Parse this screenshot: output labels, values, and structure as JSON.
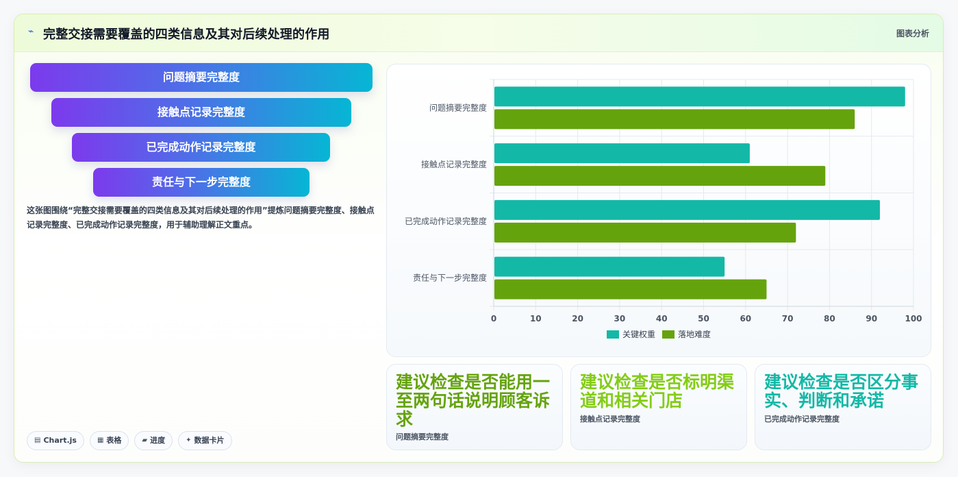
{
  "header": {
    "icon": "spark-icon",
    "title": "完整交接需要覆盖的四类信息及其对后续处理的作用",
    "tag": "图表分析"
  },
  "funnel": [
    "问题摘要完整度",
    "接触点记录完整度",
    "已完成动作记录完整度",
    "责任与下一步完整度"
  ],
  "description": "这张图围绕“完整交接需要覆盖的四类信息及其对后续处理的作用”提炼问题摘要完整度、接触点记录完整度、已完成动作记录完整度，用于辅助理解正文重点。",
  "chips": [
    {
      "icon": "chart-icon",
      "label": "Chart.js"
    },
    {
      "icon": "table-icon",
      "label": "表格"
    },
    {
      "icon": "progress-icon",
      "label": "进度"
    },
    {
      "icon": "card-icon",
      "label": "数据卡片"
    }
  ],
  "suggestions": [
    {
      "title": "建议检查是否能用一至两句话说明顾客诉求",
      "caption": "问题摘要完整度",
      "color": "#65a30d"
    },
    {
      "title": "建议检查是否标明渠道和相关门店",
      "caption": "接触点记录完整度",
      "color": "#84cc16"
    },
    {
      "title": "建议检查是否区分事实、判断和承诺",
      "caption": "已完成动作记录完整度",
      "color": "#14b8a6"
    }
  ],
  "chart_data": {
    "type": "bar",
    "orientation": "horizontal",
    "categories": [
      "问题摘要完整度",
      "接触点记录完整度",
      "已完成动作记录完整度",
      "责任与下一步完整度"
    ],
    "series": [
      {
        "name": "关键权重",
        "values": [
          98,
          61,
          92,
          55
        ],
        "color": "#14b8a6"
      },
      {
        "name": "落地难度",
        "values": [
          86,
          79,
          72,
          65
        ],
        "color": "#65a30d"
      }
    ],
    "xlim": [
      0,
      100
    ],
    "xticks": [
      0,
      10,
      20,
      30,
      40,
      50,
      60,
      70,
      80,
      90,
      100
    ],
    "grid": true,
    "legend": "bottom"
  }
}
